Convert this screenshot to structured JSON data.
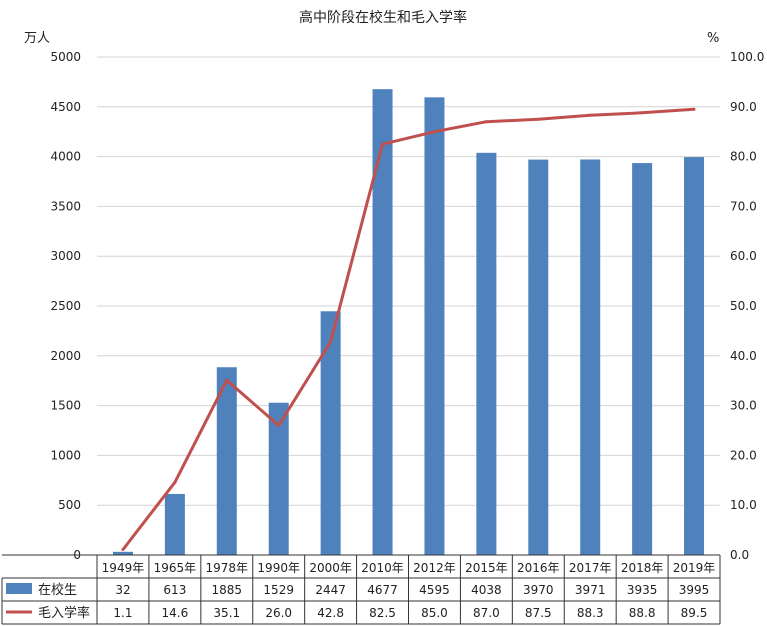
{
  "chart_data": {
    "type": "bar+line",
    "title": "高中阶段在校生和毛入学率",
    "y_left_unit": "万人",
    "y_right_unit": "%",
    "y_left_ticks": [
      "0",
      "500",
      "1000",
      "1500",
      "2000",
      "2500",
      "3000",
      "3500",
      "4000",
      "4500",
      "5000"
    ],
    "y_right_ticks": [
      "0.0",
      "10.0",
      "20.0",
      "30.0",
      "40.0",
      "50.0",
      "60.0",
      "70.0",
      "80.0",
      "90.0",
      "100.0"
    ],
    "ylim_left": [
      0,
      5000
    ],
    "ylim_right": [
      0,
      100
    ],
    "grid": true,
    "categories": [
      "1949年",
      "1965年",
      "1978年",
      "1990年",
      "2000年",
      "2010年",
      "2012年",
      "2015年",
      "2016年",
      "2017年",
      "2018年",
      "2019年"
    ],
    "series": [
      {
        "name": "在校生",
        "kind": "bar",
        "axis": "left",
        "color": "#4f81bd",
        "values": [
          32,
          613,
          1885,
          1529,
          2447,
          4677,
          4595,
          4038,
          3970,
          3971,
          3935,
          3995
        ],
        "labels": [
          "32",
          "613",
          "1885",
          "1529",
          "2447",
          "4677",
          "4595",
          "4038",
          "3970",
          "3971",
          "3935",
          "3995"
        ]
      },
      {
        "name": "毛入学率",
        "kind": "line",
        "axis": "right",
        "color": "#c0504d",
        "values": [
          1.1,
          14.6,
          35.1,
          26.0,
          42.8,
          82.5,
          85.0,
          87.0,
          87.5,
          88.3,
          88.8,
          89.5
        ],
        "labels": [
          "1.1",
          "14.6",
          "35.1",
          "26.0",
          "42.8",
          "82.5",
          "85.0",
          "87.0",
          "87.5",
          "88.3",
          "88.8",
          "89.5"
        ]
      }
    ]
  }
}
